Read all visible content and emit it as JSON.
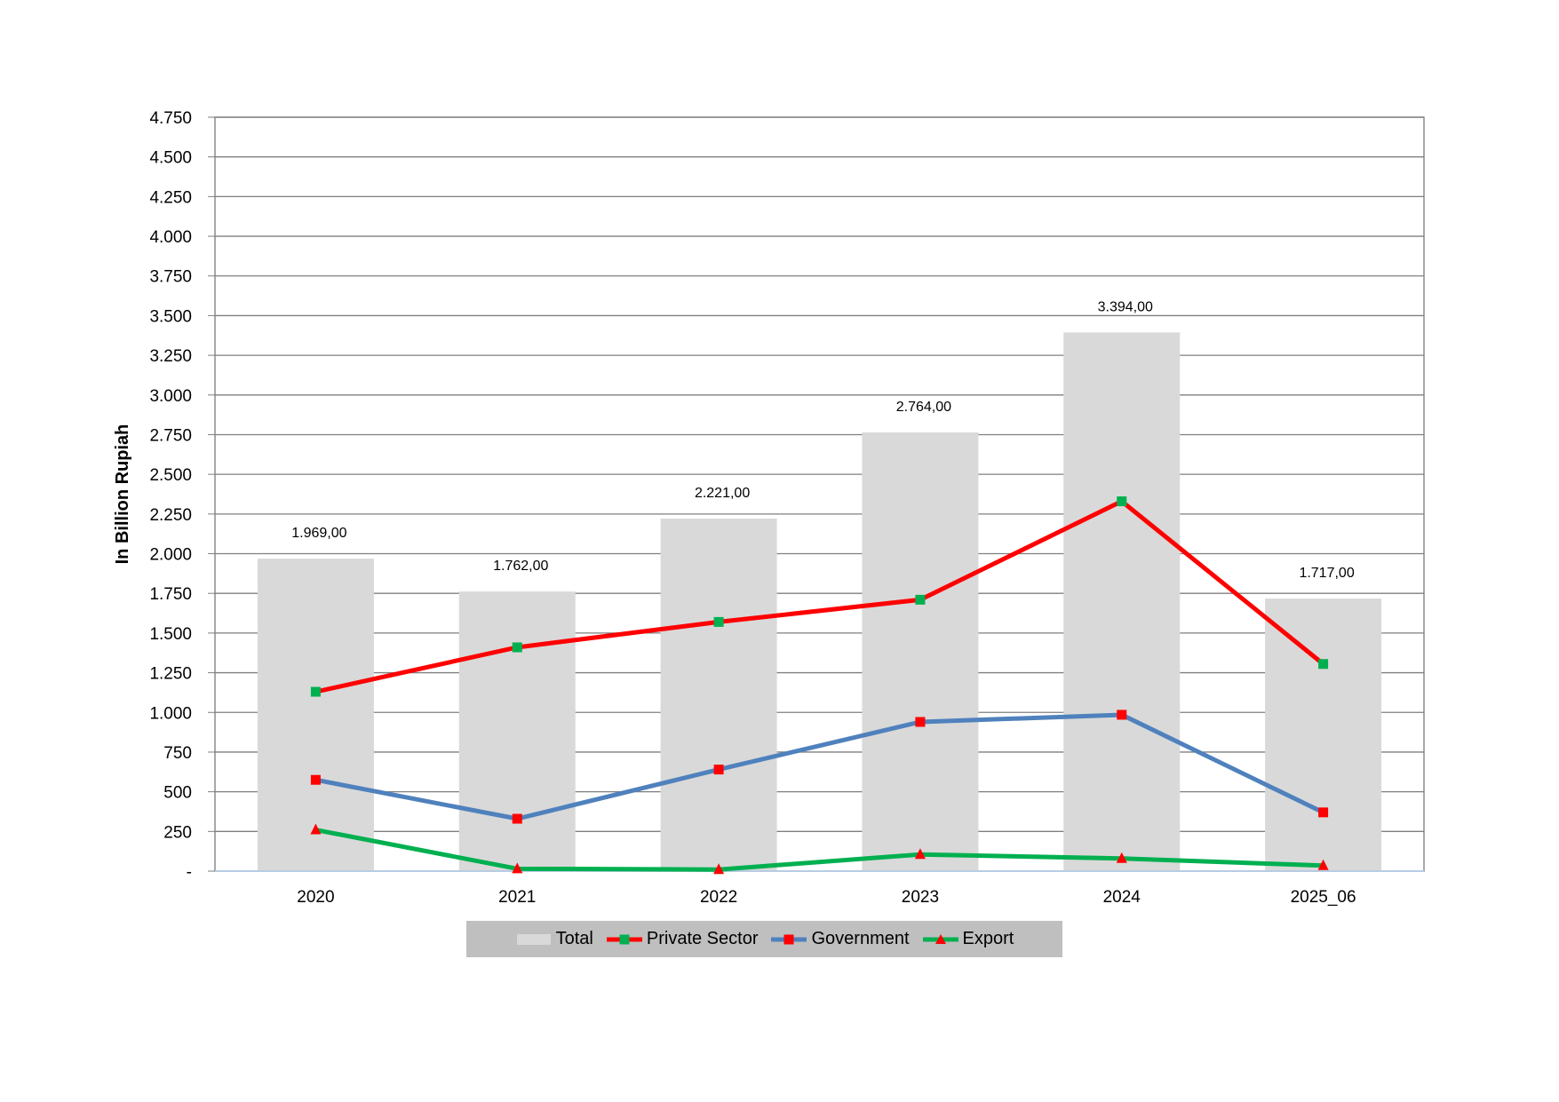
{
  "chart_data": {
    "type": "bar+line",
    "title": "",
    "xlabel": "",
    "ylabel": "In Billion Rupiah",
    "ylim": [
      0,
      4750
    ],
    "ytick_step": 250,
    "ytick_labels": [
      "-",
      "250",
      "500",
      "750",
      "1.000",
      "1.250",
      "1.500",
      "1.750",
      "2.000",
      "2.250",
      "2.500",
      "2.750",
      "3.000",
      "3.250",
      "3.500",
      "3.750",
      "4.000",
      "4.250",
      "4.500",
      "4.750"
    ],
    "grid": true,
    "legend_position": "bottom",
    "categories": [
      "2020",
      "2021",
      "2022",
      "2023",
      "2024",
      "2025_06"
    ],
    "series": [
      {
        "name": "Total",
        "kind": "bar",
        "color": "#d9d9d9",
        "values": [
          1969,
          1762,
          2221,
          2764,
          3394,
          1717
        ],
        "data_labels": [
          "1.969,00",
          "1.762,00",
          "2.221,00",
          "2.764,00",
          "3.394,00",
          "1.717,00"
        ]
      },
      {
        "name": "Private Sector",
        "kind": "line",
        "color": "#ff0000",
        "marker": "square",
        "marker_color": "#00b050",
        "values": [
          1130,
          1410,
          1570,
          1710,
          2330,
          1305
        ]
      },
      {
        "name": "Government",
        "kind": "line",
        "color": "#4f81bd",
        "marker": "square",
        "marker_color": "#ff0000",
        "values": [
          575,
          330,
          640,
          940,
          985,
          370
        ]
      },
      {
        "name": "Export",
        "kind": "line",
        "color": "#00b050",
        "marker": "triangle",
        "marker_color": "#ff0000",
        "values": [
          260,
          15,
          10,
          105,
          80,
          35
        ]
      }
    ]
  }
}
